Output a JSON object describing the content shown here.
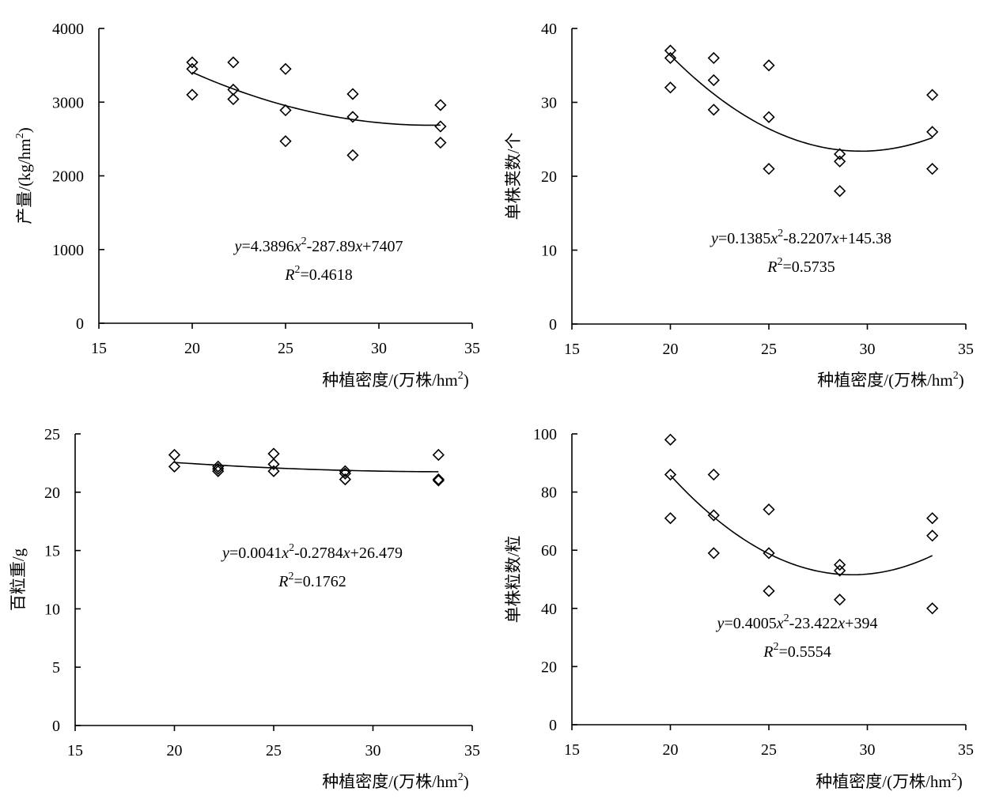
{
  "chart_data": [
    {
      "type": "scatter",
      "panel": "top-left",
      "xlabel": "种植密度/(万株/hm²)",
      "ylabel": "产量/(kg/hm²)",
      "xlim": [
        15,
        35
      ],
      "ylim": [
        0,
        4000
      ],
      "xticks": [
        15,
        20,
        25,
        30,
        35
      ],
      "yticks": [
        0,
        1000,
        2000,
        3000,
        4000
      ],
      "points": [
        [
          20,
          3540
        ],
        [
          20,
          3450
        ],
        [
          20,
          3100
        ],
        [
          22.2,
          3540
        ],
        [
          22.2,
          3170
        ],
        [
          22.2,
          3040
        ],
        [
          25,
          3450
        ],
        [
          25,
          2890
        ],
        [
          25,
          2470
        ],
        [
          28.6,
          3110
        ],
        [
          28.6,
          2800
        ],
        [
          28.6,
          2280
        ],
        [
          33.3,
          2960
        ],
        [
          33.3,
          2670
        ],
        [
          33.3,
          2450
        ]
      ],
      "fit": {
        "a": 4.3896,
        "b": -287.89,
        "c": 7407,
        "x_range": [
          20,
          33.3
        ]
      },
      "equation": {
        "y": "y",
        "eq": "=4.3896",
        "x1": "x",
        "p1": "2",
        "mid": "-287.89",
        "x2": "x",
        "tail": "+7407"
      },
      "r2": {
        "R": "R",
        "p": "2",
        "val": "=0.4618"
      }
    },
    {
      "type": "scatter",
      "panel": "top-right",
      "xlabel": "种植密度/(万株/hm²)",
      "ylabel": "单株荚数/个",
      "xlim": [
        15,
        35
      ],
      "ylim": [
        0,
        40
      ],
      "xticks": [
        15,
        20,
        25,
        30,
        35
      ],
      "yticks": [
        0,
        10,
        20,
        30,
        40
      ],
      "points": [
        [
          20,
          37
        ],
        [
          20,
          36
        ],
        [
          20,
          32
        ],
        [
          22.2,
          36
        ],
        [
          22.2,
          33
        ],
        [
          22.2,
          29
        ],
        [
          25,
          35
        ],
        [
          25,
          28
        ],
        [
          25,
          21
        ],
        [
          28.6,
          23
        ],
        [
          28.6,
          22
        ],
        [
          28.6,
          18
        ],
        [
          33.3,
          31
        ],
        [
          33.3,
          26
        ],
        [
          33.3,
          21
        ]
      ],
      "fit": {
        "a": 0.1385,
        "b": -8.2207,
        "c": 145.38,
        "x_range": [
          20,
          33.3
        ]
      },
      "equation": {
        "y": "y",
        "eq": "=0.1385",
        "x1": "x",
        "p1": "2",
        "mid": "-8.2207",
        "x2": "x",
        "tail": "+145.38"
      },
      "r2": {
        "R": "R",
        "p": "2",
        "val": "=0.5735"
      }
    },
    {
      "type": "scatter",
      "panel": "bottom-left",
      "xlabel": "种植密度/(万株/hm²)",
      "ylabel": "百粒重/g",
      "xlim": [
        15,
        35
      ],
      "ylim": [
        0,
        25
      ],
      "xticks": [
        15,
        20,
        25,
        30,
        35
      ],
      "yticks": [
        0,
        5,
        10,
        15,
        20,
        25
      ],
      "points": [
        [
          20,
          23.2
        ],
        [
          20,
          22.2
        ],
        [
          22.2,
          22.2
        ],
        [
          22.2,
          22.0
        ],
        [
          22.2,
          21.8
        ],
        [
          25,
          23.3
        ],
        [
          25,
          22.4
        ],
        [
          25,
          21.8
        ],
        [
          28.6,
          21.8
        ],
        [
          28.6,
          21.6
        ],
        [
          28.6,
          21.1
        ],
        [
          33.3,
          23.2
        ],
        [
          33.3,
          21.1
        ],
        [
          33.3,
          21.0
        ]
      ],
      "fit": {
        "a": 0.0041,
        "b": -0.2784,
        "c": 26.479,
        "x_range": [
          20,
          33.3
        ]
      },
      "equation": {
        "y": "y",
        "eq": "=0.0041",
        "x1": "x",
        "p1": "2",
        "mid": "-0.2784",
        "x2": "x",
        "tail": "+26.479"
      },
      "r2": {
        "R": "R",
        "p": "2",
        "val": "=0.1762"
      }
    },
    {
      "type": "scatter",
      "panel": "bottom-right",
      "xlabel": "种植密度/(万株/hm²)",
      "ylabel": "单株粒数/粒",
      "xlim": [
        15,
        35
      ],
      "ylim": [
        0,
        100
      ],
      "xticks": [
        15,
        20,
        25,
        30,
        35
      ],
      "yticks": [
        0,
        20,
        40,
        60,
        80,
        100
      ],
      "points": [
        [
          20,
          98
        ],
        [
          20,
          86
        ],
        [
          20,
          71
        ],
        [
          22.2,
          86
        ],
        [
          22.2,
          72
        ],
        [
          22.2,
          59
        ],
        [
          25,
          74
        ],
        [
          25,
          59
        ],
        [
          25,
          46
        ],
        [
          28.6,
          55
        ],
        [
          28.6,
          53
        ],
        [
          28.6,
          43
        ],
        [
          33.3,
          71
        ],
        [
          33.3,
          65
        ],
        [
          33.3,
          40
        ]
      ],
      "fit": {
        "a": 0.4005,
        "b": -23.422,
        "c": 394,
        "x_range": [
          20,
          33.3
        ]
      },
      "equation": {
        "y": "y",
        "eq": "=0.4005",
        "x1": "x",
        "p1": "2",
        "mid": "-23.422",
        "x2": "x",
        "tail": "+394"
      },
      "r2": {
        "R": "R",
        "p": "2",
        "val": "=0.5554"
      }
    }
  ]
}
